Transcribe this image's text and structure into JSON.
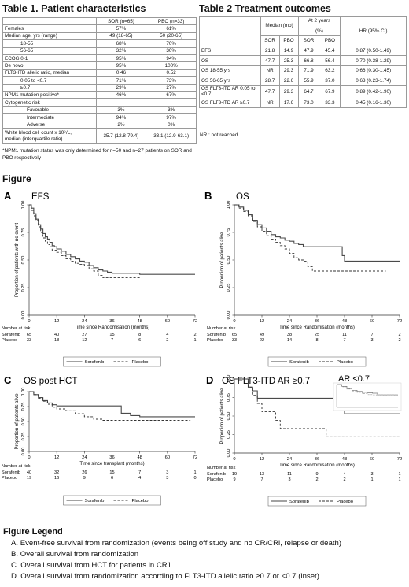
{
  "table1": {
    "title": "Table 1. Patient characteristics",
    "col_sor": "SOR (n=65)",
    "col_pbo": "PBO (n=33)",
    "rows": [
      {
        "label": "Females",
        "sor": "57%",
        "pbo": "61%",
        "indent": 0
      },
      {
        "label": "Median age, yrs (range)",
        "sor": "49 (18-65)",
        "pbo": "50 (20-65)",
        "indent": 0
      },
      {
        "label": "18-55",
        "sor": "68%",
        "pbo": "70%",
        "indent": 1
      },
      {
        "label": "56-65",
        "sor": "32%",
        "pbo": "30%",
        "indent": 1
      },
      {
        "label": "ECOG 0-1",
        "sor": "95%",
        "pbo": "94%",
        "indent": 0
      },
      {
        "label": "De novo",
        "sor": "95%",
        "pbo": "100%",
        "indent": 0
      },
      {
        "label": "FLT3-ITD allelic ratio, median",
        "sor": "0.46",
        "pbo": "0.52",
        "indent": 0
      },
      {
        "label": "0.05 to <0.7",
        "sor": "71%",
        "pbo": "73%",
        "indent": 1
      },
      {
        "label": "≥0.7",
        "sor": "29%",
        "pbo": "27%",
        "indent": 1
      },
      {
        "label": "NPM1 mutation positive*",
        "sor": "46%",
        "pbo": "67%",
        "indent": 0
      },
      {
        "label": "Cytogenetic risk",
        "sor": "",
        "pbo": "",
        "indent": 0
      },
      {
        "label": "Favorable",
        "sor": "3%",
        "pbo": "3%",
        "indent": 2
      },
      {
        "label": "Intermediate",
        "sor": "94%",
        "pbo": "97%",
        "indent": 2
      },
      {
        "label": "Adverse",
        "sor": "2%",
        "pbo": "0%",
        "indent": 2
      }
    ],
    "wbc_label_1": "White blood cell count x 10⁹/L,",
    "wbc_label_2": "median (interquartile ratio)",
    "wbc_sor": "35.7 (12.8-79.4)",
    "wbc_pbo": "33.1 (12.9-63.1)",
    "footnote": "*NPM1 mutation status was only determined for n=50 and n=27 patients on SOR and PBO respectively"
  },
  "table2": {
    "title": "Table 2 Treatment outcomes",
    "hdr_median": "Median (mo)",
    "hdr_2yrs": "At 2 years",
    "hdr_pct": "(%)",
    "hdr_hr": "HR (95% CI)",
    "hdr_sor": "SOR",
    "hdr_pbo": "PBO",
    "rows": [
      {
        "label": "EFS",
        "m_sor": "21.8",
        "m_pbo": "14.9",
        "y_sor": "47.9",
        "y_pbo": "45.4",
        "hr": "0.87 (0.50-1.49)"
      },
      {
        "label": "OS",
        "m_sor": "47.7",
        "m_pbo": "25.3",
        "y_sor": "66.8",
        "y_pbo": "56.4",
        "hr": "0.70 (0.38-1.29)"
      },
      {
        "label": "OS 18-55 yrs",
        "m_sor": "NR",
        "m_pbo": "29.3",
        "y_sor": "71.9",
        "y_pbo": "63.2",
        "hr": "0.66 (0.30-1.45)"
      },
      {
        "label": "OS 56-65 yrs",
        "m_sor": "28.7",
        "m_pbo": "22.6",
        "y_sor": "55.9",
        "y_pbo": "37.0",
        "hr": "0.63 (0.23-1.74)"
      },
      {
        "label": "OS FLT3-ITD AR 0.05 to <0.7",
        "m_sor": "47.7",
        "m_pbo": "29.3",
        "y_sor": "64.7",
        "y_pbo": "67.9",
        "hr": "0.89 (0.42-1.90)"
      },
      {
        "label": "OS FLT3-ITD AR ≥0.7",
        "m_sor": "NR",
        "m_pbo": "17.6",
        "y_sor": "73.0",
        "y_pbo": "33.3",
        "hr": "0.45 (0.16-1.30)"
      }
    ],
    "nr_note": "NR : not reached"
  },
  "figure": {
    "title": "Figure",
    "risk_header": "Number at risk",
    "sor_label": "Sorafenib",
    "pbo_label": "Placebo",
    "ytick_labels": [
      "0.00",
      "0.25",
      "0.50",
      "0.75",
      "1.00"
    ],
    "xtick_labels": [
      "0",
      "12",
      "24",
      "36",
      "48",
      "60",
      "72"
    ],
    "inset_title": "AR <0.7"
  },
  "chart_data": [
    {
      "type": "line",
      "panel": "A",
      "title": "EFS",
      "xlabel": "Time since Randomisation (months)",
      "ylabel": "Proportion of patients with no event",
      "xlim": [
        0,
        72
      ],
      "ylim": [
        0,
        1
      ],
      "grid": false,
      "legend": "bottom",
      "series": [
        {
          "name": "Sorafenib",
          "style": "solid",
          "x": [
            0,
            1,
            2,
            3,
            4,
            5,
            6,
            7,
            8,
            9,
            10,
            11,
            12,
            14,
            16,
            18,
            20,
            22,
            24,
            26,
            28,
            30,
            32,
            34,
            36,
            40,
            44,
            48,
            72
          ],
          "y": [
            1.0,
            0.97,
            0.92,
            0.87,
            0.82,
            0.78,
            0.74,
            0.71,
            0.69,
            0.66,
            0.63,
            0.62,
            0.6,
            0.58,
            0.55,
            0.53,
            0.51,
            0.49,
            0.48,
            0.45,
            0.43,
            0.41,
            0.4,
            0.39,
            0.38,
            0.38,
            0.38,
            0.37,
            0.37
          ]
        },
        {
          "name": "Placebo",
          "style": "dashed",
          "x": [
            0,
            1,
            2,
            3,
            4,
            5,
            6,
            7,
            8,
            9,
            10,
            12,
            14,
            16,
            18,
            20,
            22,
            24,
            26,
            28,
            30,
            32,
            34,
            36,
            40,
            44,
            48
          ],
          "y": [
            1.0,
            0.95,
            0.9,
            0.86,
            0.8,
            0.75,
            0.7,
            0.67,
            0.64,
            0.62,
            0.59,
            0.57,
            0.54,
            0.51,
            0.49,
            0.47,
            0.46,
            0.45,
            0.42,
            0.4,
            0.36,
            0.34,
            0.34,
            0.34,
            0.34,
            0.34,
            0.34
          ]
        }
      ],
      "risk": {
        "x": [
          0,
          12,
          24,
          36,
          48,
          60,
          72
        ],
        "sorafenib": [
          "65",
          "40",
          "27",
          "15",
          "8",
          "4",
          "2"
        ],
        "placebo": [
          "33",
          "18",
          "12",
          "7",
          "6",
          "2",
          "1"
        ]
      }
    },
    {
      "type": "line",
      "panel": "B",
      "title": "OS",
      "xlabel": "Time since Randomisation (months)",
      "ylabel": "Proportion of patients alive",
      "xlim": [
        0,
        72
      ],
      "ylim": [
        0,
        1
      ],
      "grid": false,
      "legend": "bottom",
      "series": [
        {
          "name": "Sorafenib",
          "style": "solid",
          "x": [
            0,
            2,
            4,
            6,
            8,
            10,
            12,
            14,
            16,
            18,
            20,
            22,
            24,
            26,
            28,
            30,
            34,
            38,
            42,
            46,
            47,
            48,
            60,
            72
          ],
          "y": [
            1.0,
            0.98,
            0.95,
            0.91,
            0.86,
            0.82,
            0.79,
            0.76,
            0.73,
            0.71,
            0.7,
            0.68,
            0.67,
            0.65,
            0.64,
            0.62,
            0.62,
            0.62,
            0.62,
            0.62,
            0.54,
            0.49,
            0.49,
            0.49
          ]
        },
        {
          "name": "Placebo",
          "style": "dashed",
          "x": [
            0,
            2,
            4,
            6,
            8,
            10,
            12,
            14,
            16,
            18,
            20,
            22,
            24,
            26,
            28,
            30,
            32,
            34,
            36,
            40,
            48,
            60,
            66
          ],
          "y": [
            1.0,
            0.97,
            0.94,
            0.9,
            0.85,
            0.8,
            0.76,
            0.72,
            0.69,
            0.66,
            0.63,
            0.6,
            0.56,
            0.52,
            0.5,
            0.49,
            0.44,
            0.4,
            0.4,
            0.4,
            0.4,
            0.4,
            0.4
          ]
        }
      ],
      "risk": {
        "x": [
          0,
          12,
          24,
          36,
          48,
          60,
          72
        ],
        "sorafenib": [
          "65",
          "49",
          "38",
          "25",
          "11",
          "7",
          "2"
        ],
        "placebo": [
          "33",
          "22",
          "14",
          "8",
          "7",
          "3",
          "2"
        ]
      }
    },
    {
      "type": "line",
      "panel": "C",
      "title": "OS post HCT",
      "xlabel": "Time since transplant (months)",
      "ylabel": "Proportion of patients alive",
      "xlim": [
        0,
        72
      ],
      "ylim": [
        0,
        1
      ],
      "grid": false,
      "legend": "bottom",
      "series": [
        {
          "name": "Sorafenib",
          "style": "solid",
          "x": [
            0,
            2,
            4,
            6,
            8,
            10,
            12,
            16,
            20,
            24,
            28,
            32,
            36,
            40,
            44,
            48,
            60,
            72
          ],
          "y": [
            1.0,
            0.95,
            0.9,
            0.85,
            0.81,
            0.78,
            0.76,
            0.76,
            0.76,
            0.76,
            0.76,
            0.76,
            0.76,
            0.64,
            0.6,
            0.58,
            0.58,
            0.58
          ]
        },
        {
          "name": "Placebo",
          "style": "dashed",
          "x": [
            0,
            2,
            4,
            6,
            8,
            10,
            12,
            16,
            20,
            24,
            28,
            32,
            36,
            48,
            60,
            70
          ],
          "y": [
            1.0,
            0.95,
            0.89,
            0.84,
            0.79,
            0.74,
            0.71,
            0.68,
            0.63,
            0.58,
            0.54,
            0.52,
            0.52,
            0.52,
            0.52,
            0.52
          ]
        }
      ],
      "risk": {
        "x": [
          0,
          12,
          24,
          36,
          48,
          60,
          72
        ],
        "sorafenib": [
          "40",
          "32",
          "26",
          "15",
          "7",
          "3",
          "1"
        ],
        "placebo": [
          "19",
          "16",
          "9",
          "6",
          "4",
          "3",
          "0"
        ]
      }
    },
    {
      "type": "line",
      "panel": "D",
      "title": "OS FLT3-ITD AR ≥0.7",
      "xlabel": "Time since Randomisation (months)",
      "ylabel": "Proportion of patients alive",
      "xlim": [
        0,
        72
      ],
      "ylim": [
        0,
        1
      ],
      "grid": false,
      "legend": "bottom",
      "series": [
        {
          "name": "Sorafenib",
          "style": "solid",
          "x": [
            0,
            4,
            6,
            8,
            10,
            12,
            20,
            30,
            40,
            47,
            48,
            60,
            72
          ],
          "y": [
            1.0,
            1.0,
            0.89,
            0.84,
            0.74,
            0.74,
            0.74,
            0.74,
            0.74,
            0.74,
            0.53,
            0.53,
            0.53
          ]
        },
        {
          "name": "Placebo",
          "style": "dashed",
          "x": [
            0,
            4,
            6,
            8,
            10,
            12,
            14,
            18,
            20,
            24,
            30,
            36,
            40,
            48,
            60,
            72
          ],
          "y": [
            1.0,
            1.0,
            0.89,
            0.78,
            0.67,
            0.56,
            0.56,
            0.44,
            0.33,
            0.33,
            0.33,
            0.33,
            0.22,
            0.22,
            0.22,
            0.22
          ]
        }
      ],
      "risk": {
        "x": [
          0,
          12,
          24,
          36,
          48,
          60,
          72
        ],
        "sorafenib": [
          "19",
          "13",
          "11",
          "9",
          "4",
          "3",
          "1"
        ],
        "placebo": [
          "9",
          "7",
          "3",
          "2",
          "2",
          "1",
          "1"
        ]
      }
    },
    {
      "type": "line",
      "panel": "D-inset",
      "title": "AR <0.7",
      "xlim": [
        0,
        72
      ],
      "ylim": [
        0,
        1
      ],
      "grid": false,
      "legend": "none",
      "series": [
        {
          "name": "Sorafenib",
          "style": "solid",
          "x": [
            0,
            6,
            12,
            18,
            24,
            30,
            36,
            42,
            48,
            60,
            72
          ],
          "y": [
            1.0,
            0.92,
            0.82,
            0.75,
            0.7,
            0.66,
            0.64,
            0.62,
            0.55,
            0.55,
            0.55
          ]
        },
        {
          "name": "Placebo",
          "style": "dashed",
          "x": [
            0,
            6,
            12,
            18,
            24,
            30,
            36,
            42,
            48,
            60,
            72
          ],
          "y": [
            1.0,
            0.9,
            0.8,
            0.72,
            0.66,
            0.6,
            0.56,
            0.55,
            0.55,
            0.55,
            0.55
          ]
        }
      ]
    }
  ],
  "legend": {
    "title": "Figure Legend",
    "items": [
      "A.  Event-free survival from randomization (events being off study and no CR/CRi, relapse or death)",
      "B.  Overall survival from randomization",
      "C.  Overall survival from HCT for patients in CR1",
      "D.  Overall survival from randomization according to FLT3-ITD allelic ratio ≥0.7 or <0.7 (inset)"
    ]
  }
}
